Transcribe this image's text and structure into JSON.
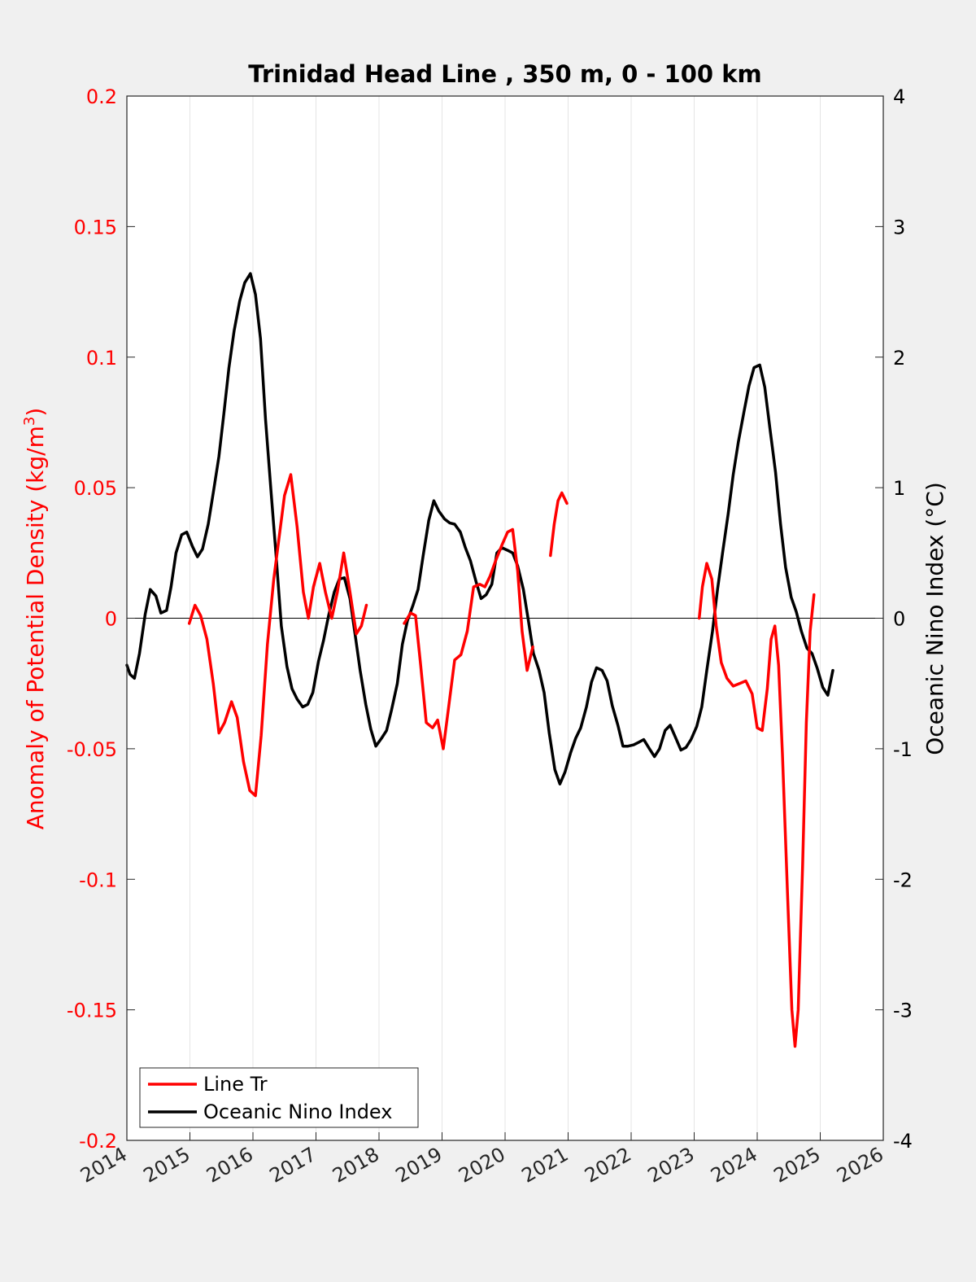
{
  "chart_data": {
    "type": "line",
    "title": "Trinidad Head Line , 350 m, 0 - 100 km",
    "xlabel": "",
    "xlim": [
      2014,
      2026
    ],
    "xticks": [
      2014,
      2015,
      2016,
      2017,
      2018,
      2019,
      2020,
      2021,
      2022,
      2023,
      2024,
      2025,
      2026
    ],
    "y_left": {
      "label_main": "Anomaly of Potential Density (kg/m",
      "label_sup": "3",
      "label_end": ")",
      "lim": [
        -0.2,
        0.2
      ],
      "ticks": [
        0.2,
        0.15,
        0.1,
        0.05,
        0,
        -0.05,
        -0.1,
        -0.15,
        -0.2
      ],
      "tick_labels": [
        "0.2",
        "0.15",
        "0.1",
        "0.05",
        "0",
        "-0.05",
        "-0.1",
        "-0.15",
        "-0.2"
      ],
      "color": "#ff0000"
    },
    "y_right": {
      "label": "Oceanic Nino Index (°C)",
      "lim": [
        -4,
        4
      ],
      "ticks": [
        4,
        3,
        2,
        1,
        0,
        -1,
        -2,
        -3,
        -4
      ],
      "tick_labels": [
        "4",
        "3",
        "2",
        "1",
        "0",
        "-1",
        "-2",
        "-3",
        "-4"
      ],
      "color": "#000000"
    },
    "zero_line": true,
    "grid": "vertical",
    "legend_position": "bottom-left",
    "series": [
      {
        "name": "Line Tr",
        "axis": "left",
        "color": "#ff0000",
        "segments": [
          [
            [
              2014.99,
              -0.002
            ],
            [
              2015.08,
              0.005
            ],
            [
              2015.17,
              0.001
            ],
            [
              2015.27,
              -0.008
            ],
            [
              2015.37,
              -0.025
            ],
            [
              2015.46,
              -0.044
            ],
            [
              2015.55,
              -0.04
            ],
            [
              2015.66,
              -0.032
            ],
            [
              2015.75,
              -0.038
            ],
            [
              2015.85,
              -0.055
            ],
            [
              2015.95,
              -0.066
            ],
            [
              2016.04,
              -0.068
            ],
            [
              2016.13,
              -0.045
            ],
            [
              2016.23,
              -0.01
            ],
            [
              2016.33,
              0.015
            ],
            [
              2016.42,
              0.032
            ],
            [
              2016.5,
              0.047
            ],
            [
              2016.6,
              0.055
            ],
            [
              2016.7,
              0.035
            ],
            [
              2016.8,
              0.01
            ],
            [
              2016.88,
              0.0
            ],
            [
              2016.96,
              0.012
            ],
            [
              2017.06,
              0.021
            ],
            [
              2017.15,
              0.01
            ],
            [
              2017.25,
              0.0
            ],
            [
              2017.34,
              0.01
            ],
            [
              2017.44,
              0.025
            ],
            [
              2017.54,
              0.01
            ],
            [
              2017.64,
              -0.006
            ],
            [
              2017.72,
              -0.003
            ],
            [
              2017.8,
              0.005
            ]
          ],
          [
            [
              2018.4,
              -0.002
            ],
            [
              2018.5,
              0.002
            ],
            [
              2018.58,
              0.001
            ],
            [
              2018.66,
              -0.018
            ],
            [
              2018.75,
              -0.04
            ],
            [
              2018.85,
              -0.042
            ],
            [
              2018.93,
              -0.039
            ],
            [
              2019.02,
              -0.05
            ],
            [
              2019.1,
              -0.035
            ],
            [
              2019.2,
              -0.016
            ],
            [
              2019.3,
              -0.014
            ],
            [
              2019.4,
              -0.005
            ],
            [
              2019.5,
              0.012
            ],
            [
              2019.6,
              0.013
            ],
            [
              2019.68,
              0.012
            ],
            [
              2019.76,
              0.016
            ],
            [
              2019.85,
              0.022
            ],
            [
              2019.95,
              0.028
            ],
            [
              2020.04,
              0.033
            ],
            [
              2020.12,
              0.034
            ],
            [
              2020.2,
              0.018
            ],
            [
              2020.27,
              -0.005
            ],
            [
              2020.35,
              -0.02
            ],
            [
              2020.44,
              -0.011
            ]
          ],
          [
            [
              2020.72,
              0.024
            ],
            [
              2020.78,
              0.036
            ],
            [
              2020.84,
              0.045
            ],
            [
              2020.9,
              0.048
            ],
            [
              2020.98,
              0.044
            ]
          ],
          [
            [
              2023.08,
              0.0
            ],
            [
              2023.13,
              0.012
            ],
            [
              2023.2,
              0.021
            ],
            [
              2023.28,
              0.015
            ],
            [
              2023.35,
              -0.003
            ],
            [
              2023.43,
              -0.017
            ],
            [
              2023.52,
              -0.023
            ],
            [
              2023.62,
              -0.026
            ],
            [
              2023.72,
              -0.025
            ],
            [
              2023.82,
              -0.024
            ],
            [
              2023.92,
              -0.029
            ],
            [
              2024.0,
              -0.042
            ],
            [
              2024.08,
              -0.043
            ],
            [
              2024.16,
              -0.027
            ],
            [
              2024.22,
              -0.008
            ],
            [
              2024.28,
              -0.003
            ],
            [
              2024.34,
              -0.018
            ],
            [
              2024.4,
              -0.052
            ],
            [
              2024.48,
              -0.105
            ],
            [
              2024.55,
              -0.15
            ],
            [
              2024.6,
              -0.164
            ],
            [
              2024.65,
              -0.15
            ],
            [
              2024.72,
              -0.095
            ],
            [
              2024.78,
              -0.04
            ],
            [
              2024.84,
              -0.005
            ],
            [
              2024.9,
              0.009
            ]
          ]
        ]
      },
      {
        "name": "Oceanic Nino Index",
        "axis": "right",
        "color": "#000000",
        "segments": [
          [
            [
              2014.0,
              -0.36
            ],
            [
              2014.05,
              -0.43
            ],
            [
              2014.12,
              -0.46
            ],
            [
              2014.2,
              -0.27
            ],
            [
              2014.29,
              0.03
            ],
            [
              2014.37,
              0.22
            ],
            [
              2014.46,
              0.17
            ],
            [
              2014.54,
              0.04
            ],
            [
              2014.63,
              0.06
            ],
            [
              2014.7,
              0.24
            ],
            [
              2014.78,
              0.5
            ],
            [
              2014.87,
              0.64
            ],
            [
              2014.95,
              0.66
            ],
            [
              2015.04,
              0.55
            ],
            [
              2015.12,
              0.47
            ],
            [
              2015.2,
              0.53
            ],
            [
              2015.29,
              0.72
            ],
            [
              2015.37,
              0.96
            ],
            [
              2015.46,
              1.24
            ],
            [
              2015.54,
              1.57
            ],
            [
              2015.62,
              1.92
            ],
            [
              2015.7,
              2.2
            ],
            [
              2015.79,
              2.43
            ],
            [
              2015.87,
              2.57
            ],
            [
              2015.96,
              2.64
            ],
            [
              2016.04,
              2.48
            ],
            [
              2016.12,
              2.14
            ],
            [
              2016.2,
              1.52
            ],
            [
              2016.29,
              0.95
            ],
            [
              2016.37,
              0.46
            ],
            [
              2016.45,
              -0.06
            ],
            [
              2016.54,
              -0.37
            ],
            [
              2016.62,
              -0.54
            ],
            [
              2016.7,
              -0.62
            ],
            [
              2016.79,
              -0.68
            ],
            [
              2016.87,
              -0.66
            ],
            [
              2016.95,
              -0.57
            ],
            [
              2017.04,
              -0.33
            ],
            [
              2017.12,
              -0.17
            ],
            [
              2017.2,
              0.02
            ],
            [
              2017.29,
              0.2
            ],
            [
              2017.37,
              0.3
            ],
            [
              2017.45,
              0.31
            ],
            [
              2017.54,
              0.15
            ],
            [
              2017.62,
              -0.12
            ],
            [
              2017.7,
              -0.4
            ],
            [
              2017.79,
              -0.66
            ],
            [
              2017.87,
              -0.85
            ],
            [
              2017.95,
              -0.98
            ],
            [
              2018.04,
              -0.92
            ],
            [
              2018.12,
              -0.86
            ],
            [
              2018.2,
              -0.7
            ],
            [
              2018.29,
              -0.5
            ],
            [
              2018.37,
              -0.2
            ],
            [
              2018.45,
              -0.02
            ],
            [
              2018.54,
              0.1
            ],
            [
              2018.62,
              0.22
            ],
            [
              2018.7,
              0.48
            ],
            [
              2018.79,
              0.75
            ],
            [
              2018.87,
              0.9
            ],
            [
              2018.95,
              0.82
            ],
            [
              2019.04,
              0.76
            ],
            [
              2019.12,
              0.73
            ],
            [
              2019.2,
              0.72
            ],
            [
              2019.29,
              0.66
            ],
            [
              2019.37,
              0.54
            ],
            [
              2019.45,
              0.44
            ],
            [
              2019.54,
              0.28
            ],
            [
              2019.62,
              0.15
            ],
            [
              2019.7,
              0.18
            ],
            [
              2019.79,
              0.26
            ],
            [
              2019.87,
              0.5
            ],
            [
              2019.95,
              0.54
            ],
            [
              2020.04,
              0.52
            ],
            [
              2020.12,
              0.5
            ],
            [
              2020.2,
              0.4
            ],
            [
              2020.29,
              0.22
            ],
            [
              2020.37,
              -0.02
            ],
            [
              2020.45,
              -0.27
            ],
            [
              2020.54,
              -0.4
            ],
            [
              2020.62,
              -0.57
            ],
            [
              2020.7,
              -0.88
            ],
            [
              2020.79,
              -1.16
            ],
            [
              2020.87,
              -1.27
            ],
            [
              2020.95,
              -1.18
            ],
            [
              2021.04,
              -1.03
            ],
            [
              2021.12,
              -0.92
            ],
            [
              2021.2,
              -0.84
            ],
            [
              2021.29,
              -0.68
            ],
            [
              2021.37,
              -0.49
            ],
            [
              2021.45,
              -0.38
            ],
            [
              2021.54,
              -0.4
            ],
            [
              2021.62,
              -0.48
            ],
            [
              2021.7,
              -0.67
            ],
            [
              2021.79,
              -0.82
            ],
            [
              2021.87,
              -0.98
            ],
            [
              2021.95,
              -0.98
            ],
            [
              2022.04,
              -0.97
            ],
            [
              2022.12,
              -0.95
            ],
            [
              2022.2,
              -0.93
            ],
            [
              2022.29,
              -1.0
            ],
            [
              2022.37,
              -1.06
            ],
            [
              2022.45,
              -1.0
            ],
            [
              2022.54,
              -0.86
            ],
            [
              2022.62,
              -0.82
            ],
            [
              2022.7,
              -0.91
            ],
            [
              2022.79,
              -1.01
            ],
            [
              2022.87,
              -0.99
            ],
            [
              2022.95,
              -0.93
            ],
            [
              2023.04,
              -0.83
            ],
            [
              2023.12,
              -0.68
            ],
            [
              2023.2,
              -0.4
            ],
            [
              2023.29,
              -0.1
            ],
            [
              2023.37,
              0.22
            ],
            [
              2023.45,
              0.5
            ],
            [
              2023.54,
              0.8
            ],
            [
              2023.62,
              1.1
            ],
            [
              2023.7,
              1.35
            ],
            [
              2023.79,
              1.58
            ],
            [
              2023.87,
              1.78
            ],
            [
              2023.95,
              1.92
            ],
            [
              2024.04,
              1.94
            ],
            [
              2024.12,
              1.77
            ],
            [
              2024.2,
              1.46
            ],
            [
              2024.29,
              1.12
            ],
            [
              2024.37,
              0.72
            ],
            [
              2024.45,
              0.39
            ],
            [
              2024.54,
              0.16
            ],
            [
              2024.62,
              0.05
            ],
            [
              2024.7,
              -0.1
            ],
            [
              2024.79,
              -0.23
            ],
            [
              2024.87,
              -0.27
            ],
            [
              2024.95,
              -0.38
            ],
            [
              2025.04,
              -0.53
            ],
            [
              2025.12,
              -0.59
            ],
            [
              2025.2,
              -0.4
            ]
          ]
        ]
      }
    ]
  }
}
